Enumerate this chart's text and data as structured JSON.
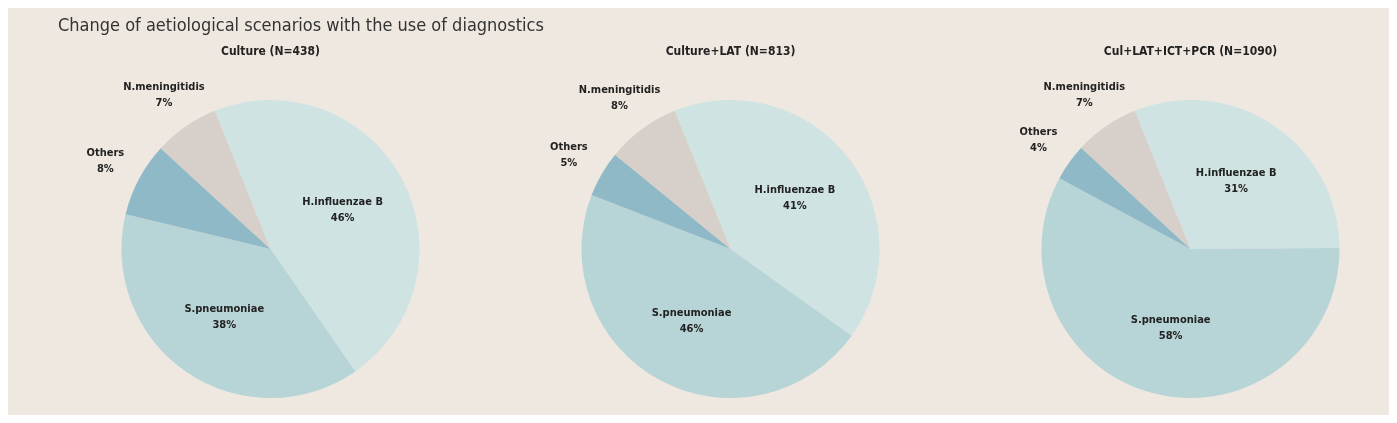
{
  "chart_data": [
    {
      "type": "pie",
      "title": "Culture (N=438)",
      "annotations": [
        "Change of aetiological scenarios with the use of diagnostics"
      ],
      "categories": [
        "H.influenzae B",
        "S.pneumoniae",
        "Others",
        "N.meningitidis"
      ],
      "values": [
        46,
        38,
        8,
        7
      ],
      "value_labels": [
        "46%",
        "38%",
        "8%",
        "7%"
      ],
      "colors": [
        "#cfe3e3",
        "#b7d4d6",
        "#8fb9c7",
        "#d7cfca"
      ]
    },
    {
      "type": "pie",
      "title": "Culture+LAT (N=813)",
      "categories": [
        "H.influenzae B",
        "S.pneumoniae",
        "Others",
        "N.meningitidis"
      ],
      "values": [
        41,
        46,
        5,
        8
      ],
      "value_labels": [
        "41%",
        "46%",
        "5%",
        "8%"
      ],
      "colors": [
        "#cfe3e3",
        "#b7d4d6",
        "#8fb9c7",
        "#d7cfca"
      ]
    },
    {
      "type": "pie",
      "title": "Cul+LAT+ICT+PCR (N=1090)",
      "categories": [
        "H.influenzae B",
        "S.pneumoniae",
        "Others",
        "N.meningitidis"
      ],
      "values": [
        31,
        58,
        4,
        7
      ],
      "value_labels": [
        "31%",
        "58%",
        "4%",
        "7%"
      ],
      "colors": [
        "#cfe3e3",
        "#b7d4d6",
        "#8fb9c7",
        "#d7cfca"
      ]
    }
  ]
}
